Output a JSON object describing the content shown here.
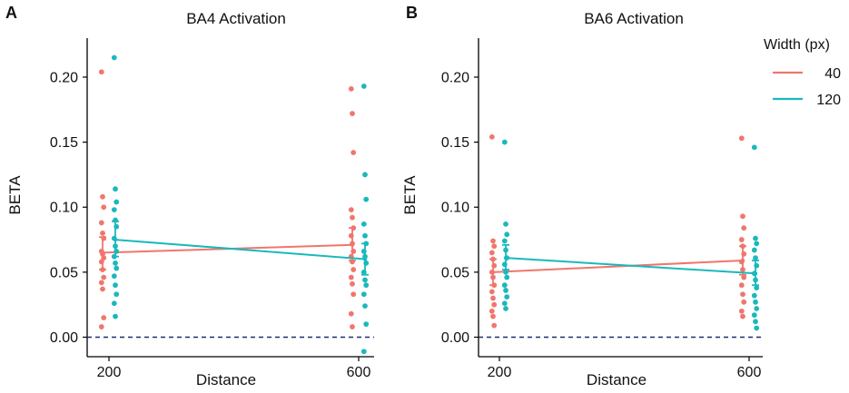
{
  "colors": {
    "w40": "#F0766D",
    "w120": "#1BB8BC",
    "zero_line": "#1C2E6E",
    "axis": "#000000"
  },
  "legend": {
    "title": "Width (px)",
    "items": [
      {
        "key": "w40",
        "label": "40"
      },
      {
        "key": "w120",
        "label": "120"
      }
    ]
  },
  "chart_data": [
    {
      "panel": "A",
      "type": "scatter",
      "title": "BA4 Activation",
      "xlabel": "Distance",
      "ylabel": "BETA",
      "categories": [
        "200",
        "600"
      ],
      "ylim": [
        -0.015,
        0.23
      ],
      "yticks": [
        0.0,
        0.05,
        0.1,
        0.15,
        0.2
      ],
      "ytick_labels": [
        "0.00",
        "0.05",
        "0.10",
        "0.15",
        "0.20"
      ],
      "reference_line": 0.0,
      "series": [
        {
          "name": "40",
          "color_key": "w40",
          "means": [
            0.065,
            0.071
          ],
          "error_low": [
            0.052,
            0.059
          ],
          "error_high": [
            0.077,
            0.084
          ],
          "points": [
            [
              0.204,
              0.108,
              0.1,
              0.088,
              0.08,
              0.076,
              0.066,
              0.064,
              0.061,
              0.058,
              0.052,
              0.046,
              0.042,
              0.037,
              0.015,
              0.008
            ],
            [
              0.191,
              0.172,
              0.142,
              0.098,
              0.092,
              0.084,
              0.078,
              0.072,
              0.066,
              0.062,
              0.058,
              0.052,
              0.046,
              0.041,
              0.033,
              0.018,
              0.008
            ]
          ]
        },
        {
          "name": "120",
          "color_key": "w120",
          "means": [
            0.075,
            0.06
          ],
          "error_low": [
            0.062,
            0.048
          ],
          "error_high": [
            0.089,
            0.072
          ],
          "points": [
            [
              0.215,
              0.114,
              0.104,
              0.098,
              0.09,
              0.085,
              0.076,
              0.07,
              0.066,
              0.062,
              0.057,
              0.053,
              0.047,
              0.04,
              0.033,
              0.026,
              0.016
            ],
            [
              0.193,
              0.125,
              0.106,
              0.087,
              0.078,
              0.072,
              0.066,
              0.062,
              0.057,
              0.05,
              0.044,
              0.04,
              0.033,
              0.024,
              0.01,
              -0.011
            ]
          ]
        }
      ]
    },
    {
      "panel": "B",
      "type": "scatter",
      "title": "BA6 Activation",
      "xlabel": "Distance",
      "ylabel": "BETA",
      "categories": [
        "200",
        "600"
      ],
      "ylim": [
        -0.015,
        0.23
      ],
      "yticks": [
        0.0,
        0.05,
        0.1,
        0.15,
        0.2
      ],
      "ytick_labels": [
        "0.00",
        "0.05",
        "0.10",
        "0.15",
        "0.20"
      ],
      "reference_line": 0.0,
      "series": [
        {
          "name": "40",
          "color_key": "w40",
          "means": [
            0.05,
            0.059
          ],
          "error_low": [
            0.04,
            0.048
          ],
          "error_high": [
            0.06,
            0.07
          ],
          "points": [
            [
              0.154,
              0.074,
              0.07,
              0.065,
              0.06,
              0.055,
              0.05,
              0.046,
              0.04,
              0.035,
              0.03,
              0.025,
              0.02,
              0.016,
              0.009
            ],
            [
              0.153,
              0.093,
              0.084,
              0.075,
              0.07,
              0.064,
              0.058,
              0.052,
              0.046,
              0.04,
              0.033,
              0.027,
              0.02,
              0.016
            ]
          ]
        },
        {
          "name": "120",
          "color_key": "w120",
          "means": [
            0.061,
            0.049
          ],
          "error_low": [
            0.052,
            0.04
          ],
          "error_high": [
            0.071,
            0.059
          ],
          "points": [
            [
              0.15,
              0.087,
              0.079,
              0.074,
              0.067,
              0.061,
              0.056,
              0.05,
              0.046,
              0.04,
              0.036,
              0.031,
              0.026,
              0.022
            ],
            [
              0.146,
              0.076,
              0.072,
              0.067,
              0.061,
              0.055,
              0.049,
              0.044,
              0.038,
              0.032,
              0.027,
              0.022,
              0.017,
              0.012,
              0.007
            ]
          ]
        }
      ]
    }
  ]
}
